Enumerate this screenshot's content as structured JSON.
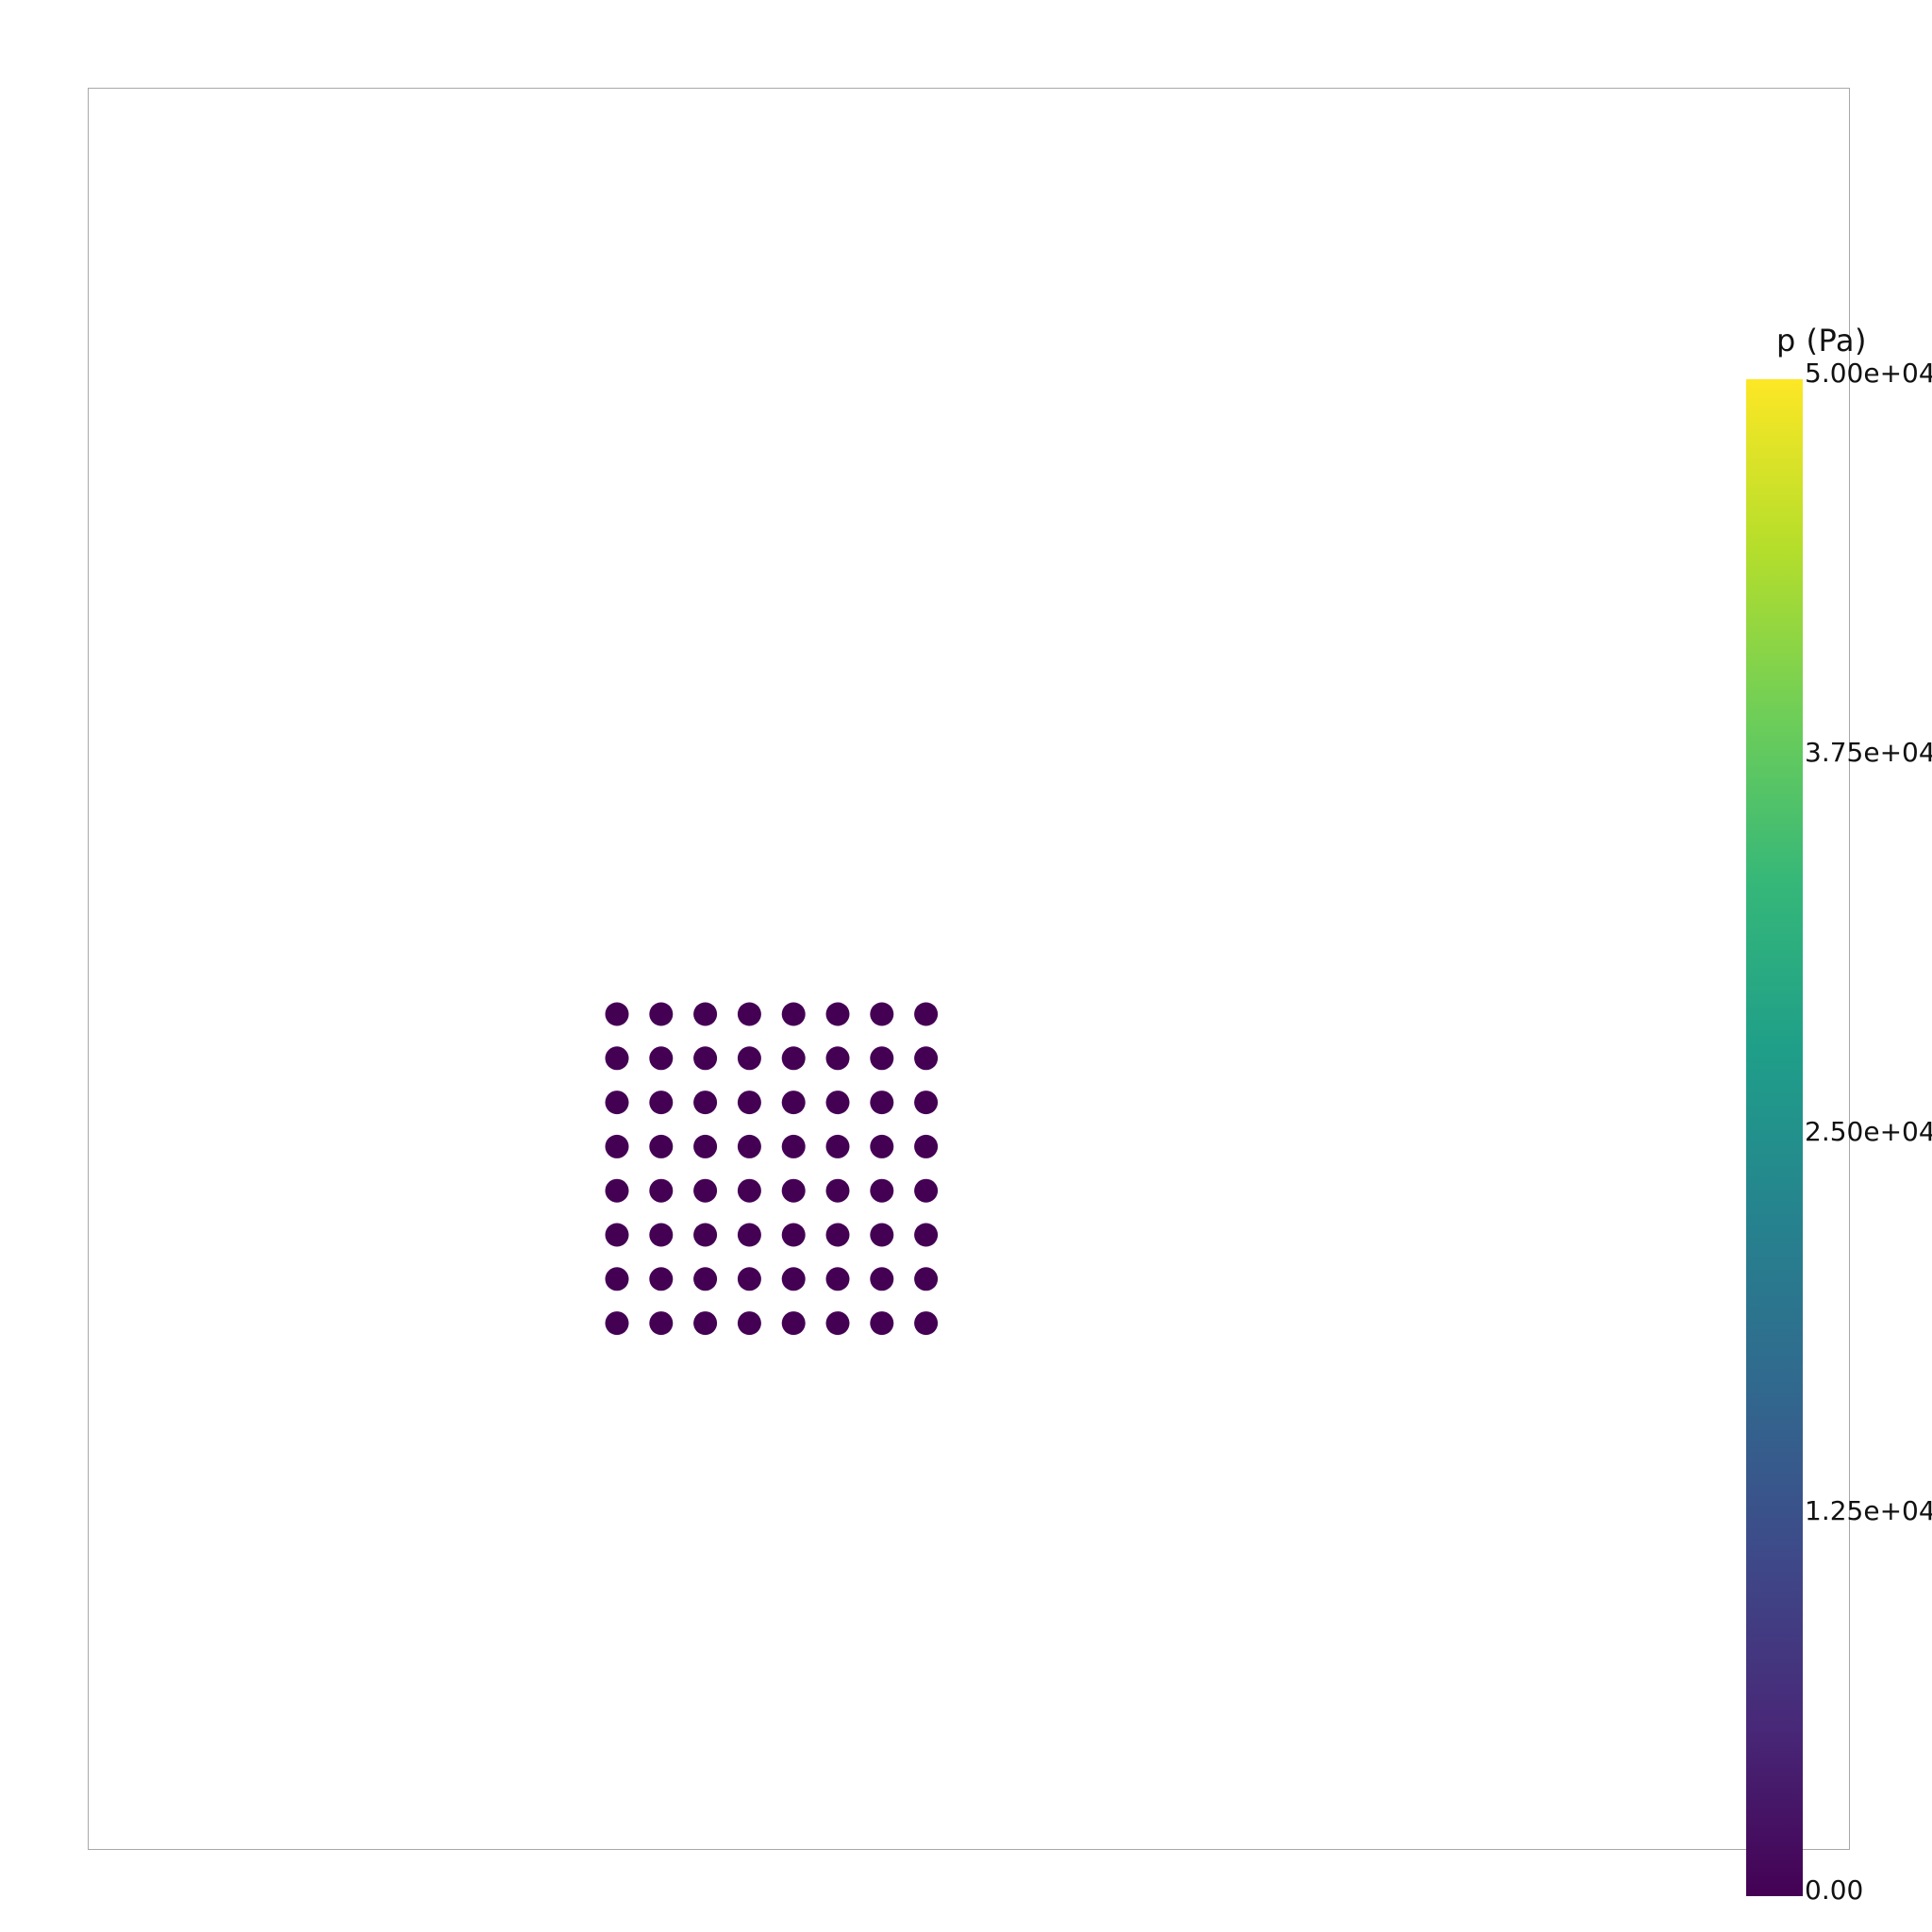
{
  "scene": {
    "particle_color": "#440154",
    "particle_grid": {
      "rows": 8,
      "cols": 8
    },
    "frame_color": "#a8a8a8",
    "background": "#ffffff"
  },
  "colorbar": {
    "title": "p (Pa)",
    "colormap": "viridis",
    "range": [
      0,
      50000
    ],
    "labels": [
      "5.00e+04",
      "3.75e+04",
      "2.50e+04",
      "1.25e+04",
      "0.00"
    ],
    "stops": [
      "#fde725",
      "#b5de2b",
      "#6ece58",
      "#35b779",
      "#1f9e89",
      "#26828e",
      "#31688e",
      "#3e4989",
      "#482878",
      "#440154"
    ]
  }
}
